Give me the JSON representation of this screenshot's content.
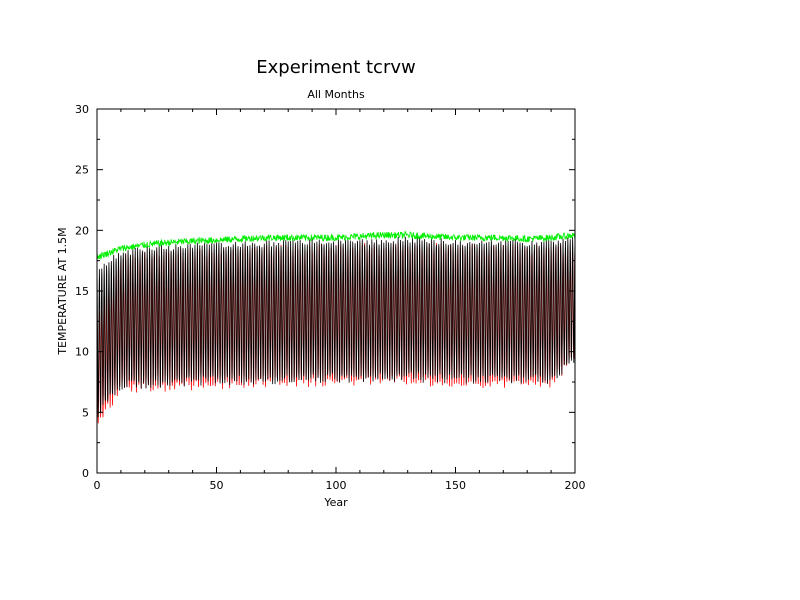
{
  "chart_data": {
    "type": "line",
    "title": "Experiment tcrvw",
    "subtitle": "All Months",
    "xlabel": "Year",
    "ylabel": "TEMPERATURE AT 1.5M",
    "xlim": [
      0,
      200
    ],
    "ylim": [
      0,
      30
    ],
    "x_ticks": [
      0,
      50,
      100,
      150,
      200
    ],
    "y_ticks": [
      0,
      5,
      10,
      15,
      20,
      25,
      30
    ],
    "grid": false,
    "series": [
      {
        "color": "#00ee00",
        "style": "noisy-upper-envelope",
        "x": [
          0,
          10,
          20,
          30,
          40,
          50,
          60,
          70,
          80,
          90,
          100,
          110,
          120,
          130,
          140,
          150,
          160,
          170,
          180,
          190,
          200
        ],
        "values": [
          17.8,
          18.5,
          18.8,
          19.0,
          19.1,
          19.2,
          19.3,
          19.4,
          19.4,
          19.4,
          19.4,
          19.5,
          19.6,
          19.6,
          19.5,
          19.4,
          19.4,
          19.4,
          19.3,
          19.4,
          19.6
        ]
      },
      {
        "color": "#000000",
        "style": "monthly-cycle",
        "x": [
          0,
          10,
          20,
          30,
          40,
          50,
          60,
          70,
          80,
          90,
          100,
          110,
          120,
          130,
          140,
          150,
          160,
          170,
          180,
          190,
          200
        ],
        "max": [
          16.5,
          18.2,
          18.4,
          18.6,
          18.7,
          18.8,
          18.9,
          18.9,
          19.0,
          19.0,
          19.0,
          19.1,
          19.1,
          19.2,
          19.1,
          19.0,
          19.0,
          19.0,
          19.0,
          19.0,
          19.2
        ],
        "min": [
          4.8,
          7.2,
          7.3,
          7.4,
          7.5,
          7.6,
          7.6,
          7.7,
          7.7,
          7.8,
          7.8,
          7.8,
          7.9,
          7.9,
          7.8,
          7.8,
          7.7,
          7.7,
          7.7,
          7.7,
          9.5
        ]
      },
      {
        "color": "#ff0000",
        "style": "monthly-cycle",
        "x": [
          0,
          10,
          20,
          30,
          40,
          50,
          60,
          70,
          80,
          90,
          100,
          110,
          120,
          130,
          140,
          150,
          160,
          170,
          180,
          190,
          200
        ],
        "max": [
          13.0,
          17.8,
          18.0,
          18.2,
          18.3,
          18.4,
          18.5,
          18.5,
          18.6,
          18.6,
          18.6,
          18.7,
          18.7,
          18.8,
          18.7,
          18.6,
          18.6,
          18.6,
          18.6,
          18.6,
          18.5
        ],
        "min": [
          4.2,
          6.9,
          7.0,
          7.1,
          7.2,
          7.3,
          7.3,
          7.4,
          7.4,
          7.5,
          7.5,
          7.5,
          7.6,
          7.6,
          7.5,
          7.5,
          7.4,
          7.4,
          7.4,
          7.4,
          9.5
        ]
      }
    ]
  }
}
